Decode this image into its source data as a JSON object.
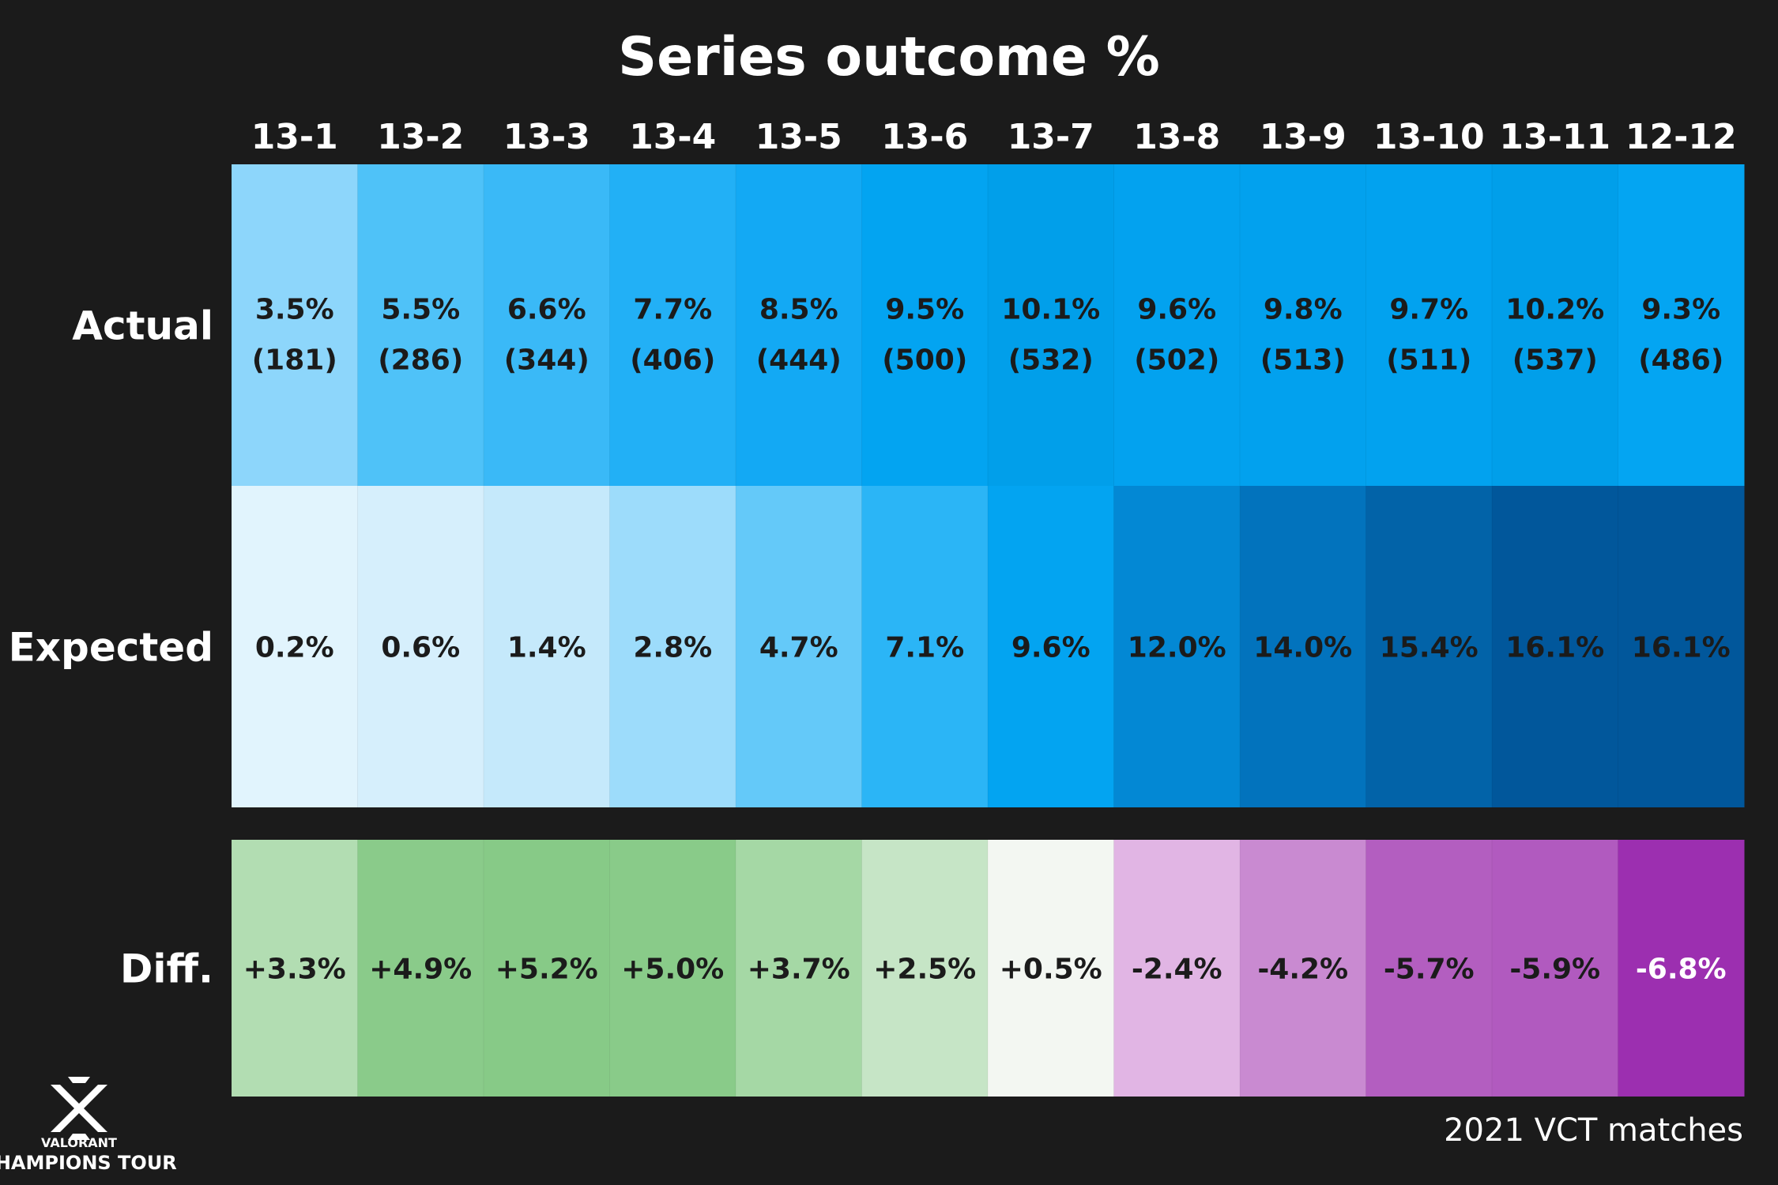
{
  "chart_data": {
    "type": "heatmap",
    "title": "Series outcome %",
    "categories": [
      "13-1",
      "13-2",
      "13-3",
      "13-4",
      "13-5",
      "13-6",
      "13-7",
      "13-8",
      "13-9",
      "13-10",
      "13-11",
      "12-12"
    ],
    "rows": [
      {
        "label": "Actual",
        "values": [
          3.5,
          5.5,
          6.6,
          7.7,
          8.5,
          9.5,
          10.1,
          9.6,
          9.8,
          9.7,
          10.2,
          9.3
        ],
        "display": [
          "3.5%",
          "5.5%",
          "6.6%",
          "7.7%",
          "8.5%",
          "9.5%",
          "10.1%",
          "9.6%",
          "9.8%",
          "9.7%",
          "10.2%",
          "9.3%"
        ],
        "counts": [
          "(181)",
          "(286)",
          "(344)",
          "(406)",
          "(444)",
          "(500)",
          "(532)",
          "(502)",
          "(513)",
          "(511)",
          "(537)",
          "(486)"
        ],
        "colors": [
          "#8dd6fb",
          "#4fc2f8",
          "#3ab9f7",
          "#22b0f6",
          "#13a9f4",
          "#03a4f1",
          "#019fea",
          "#03a2ef",
          "#02a1ee",
          "#02a2ef",
          "#019fea",
          "#04a5f2"
        ]
      },
      {
        "label": "Expected",
        "values": [
          0.2,
          0.6,
          1.4,
          2.8,
          4.7,
          7.1,
          9.6,
          12.0,
          14.0,
          15.4,
          16.1,
          16.1
        ],
        "display": [
          "0.2%",
          "0.6%",
          "1.4%",
          "2.8%",
          "4.7%",
          "7.1%",
          "9.6%",
          "12.0%",
          "14.0%",
          "15.4%",
          "16.1%",
          "16.1%"
        ],
        "colors": [
          "#e1f4fd",
          "#d6effc",
          "#c5e9fb",
          "#9ddcfb",
          "#64c9f9",
          "#2bb5f6",
          "#03a4f1",
          "#0388d4",
          "#0273bd",
          "#0263a8",
          "#01579b",
          "#01579b"
        ]
      },
      {
        "label": "Diff.",
        "values": [
          3.3,
          4.9,
          5.2,
          5.0,
          3.7,
          2.5,
          0.5,
          -2.4,
          -4.2,
          -5.7,
          -5.9,
          -6.8
        ],
        "display": [
          "+3.3%",
          "+4.9%",
          "+5.2%",
          "+5.0%",
          "+3.7%",
          "+2.5%",
          "+0.5%",
          "-2.4%",
          "-4.2%",
          "-5.7%",
          "-5.9%",
          "-6.8%"
        ],
        "colors": [
          "#b2ddb2",
          "#8acb8a",
          "#87ca87",
          "#89cb89",
          "#a5d8a5",
          "#c6e5c6",
          "#f3f7f2",
          "#e1b5e4",
          "#c98ad1",
          "#b35ec0",
          "#b15abf",
          "#9c2fb0"
        ],
        "text_colors": [
          "#1b1b1b",
          "#1b1b1b",
          "#1b1b1b",
          "#1b1b1b",
          "#1b1b1b",
          "#1b1b1b",
          "#1b1b1b",
          "#1b1b1b",
          "#1b1b1b",
          "#1b1b1b",
          "#1b1b1b",
          "#ffffff"
        ]
      }
    ],
    "source": "2021 VCT matches",
    "logo": {
      "brand": "VALORANT",
      "name": "CHAMPIONS TOUR"
    },
    "colors": {
      "background": "#1b1b1b",
      "text_light": "#ffffff",
      "text_dark": "#1b1b1b"
    }
  }
}
